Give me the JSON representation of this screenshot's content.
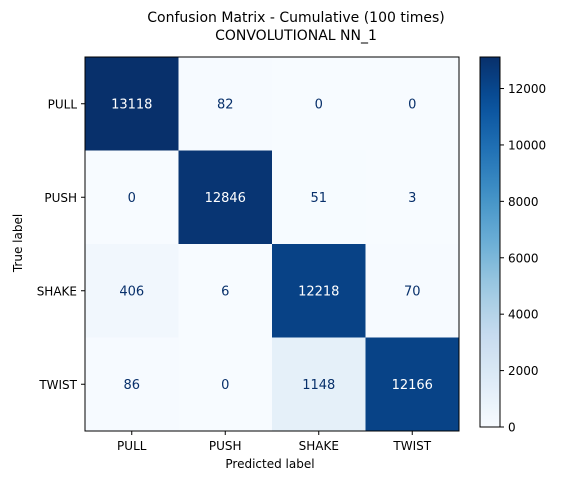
{
  "chart_data": {
    "type": "heatmap",
    "title_lines": [
      "Confusion Matrix - Cumulative (100 times)",
      "CONVOLUTIONAL NN_1"
    ],
    "xlabel": "Predicted label",
    "ylabel": "True label",
    "x_categories": [
      "PULL",
      "PUSH",
      "SHAKE",
      "TWIST"
    ],
    "y_categories": [
      "PULL",
      "PUSH",
      "SHAKE",
      "TWIST"
    ],
    "values": [
      [
        13118,
        82,
        0,
        0
      ],
      [
        0,
        12846,
        51,
        3
      ],
      [
        406,
        6,
        12218,
        70
      ],
      [
        86,
        0,
        1148,
        12166
      ]
    ],
    "value_labels": [
      [
        "13118",
        "82",
        "0",
        "0"
      ],
      [
        "0",
        "12846",
        "51",
        "3"
      ],
      [
        "406",
        "6",
        "12218",
        "70"
      ],
      [
        "86",
        "0",
        "1148",
        "12166"
      ]
    ],
    "colormap": "Blues",
    "colorbar_range": [
      0,
      13118
    ],
    "colorbar_ticks": [
      0,
      2000,
      4000,
      6000,
      8000,
      10000,
      12000
    ],
    "colorbar_tick_labels": [
      "0",
      "2000",
      "4000",
      "6000",
      "8000",
      "10000",
      "12000"
    ],
    "text_color_light": "#ffffff",
    "text_color_dark": "#08306b"
  }
}
